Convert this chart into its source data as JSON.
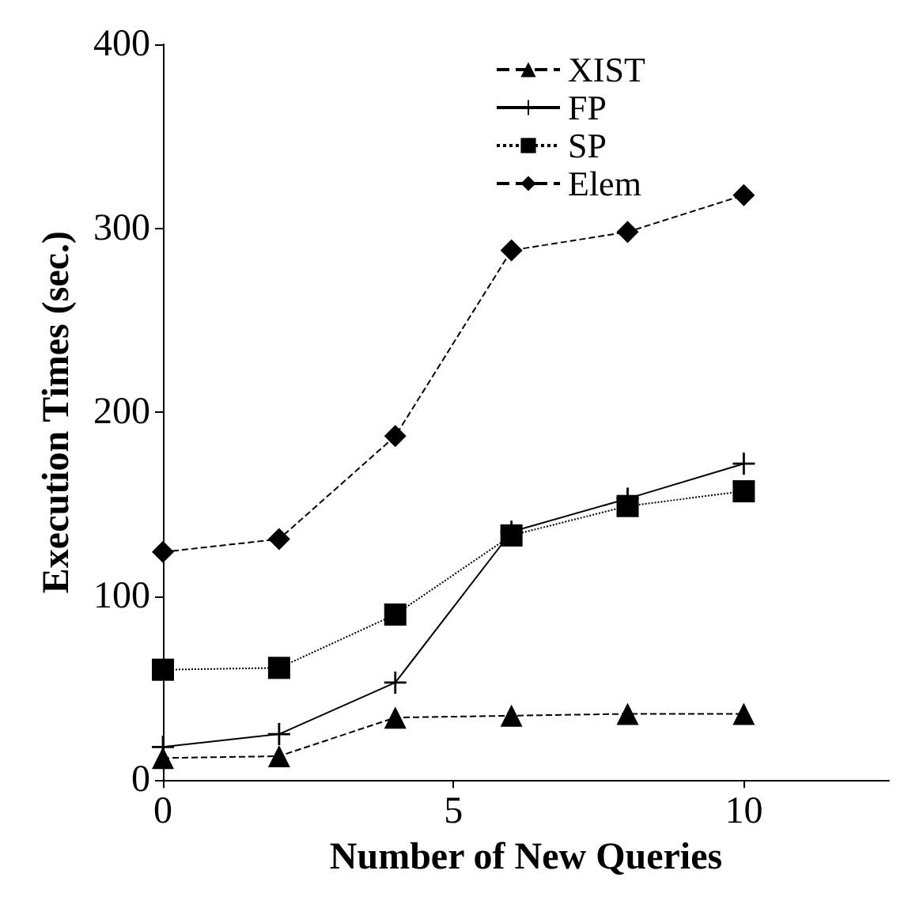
{
  "chart_data": {
    "type": "line",
    "xlabel": "Number of New Queries",
    "ylabel": "Execution Times (sec.)",
    "x": [
      0,
      2,
      4,
      6,
      8,
      10
    ],
    "xlim": [
      0,
      12.5
    ],
    "xticks": [
      0,
      5,
      10
    ],
    "ylim": [
      0,
      400
    ],
    "yticks": [
      0,
      100,
      200,
      300,
      400
    ],
    "grid": false,
    "legend": "top right",
    "series": [
      {
        "name": "XIST",
        "color": "#000000",
        "marker": "triangle",
        "line_style": "dashed",
        "values": [
          12,
          13,
          34,
          35,
          36,
          36
        ]
      },
      {
        "name": "FP",
        "color": "#000000",
        "marker": "cross",
        "line_style": "solid",
        "values": [
          18,
          25,
          53,
          135,
          153,
          172
        ]
      },
      {
        "name": "SP",
        "color": "#000000",
        "marker": "square",
        "line_style": "dotted",
        "values": [
          60,
          61,
          90,
          133,
          149,
          157
        ]
      },
      {
        "name": "Elem",
        "color": "#000000",
        "marker": "diamond",
        "line_style": "dashed",
        "values": [
          124,
          131,
          187,
          288,
          298,
          318
        ]
      }
    ]
  }
}
